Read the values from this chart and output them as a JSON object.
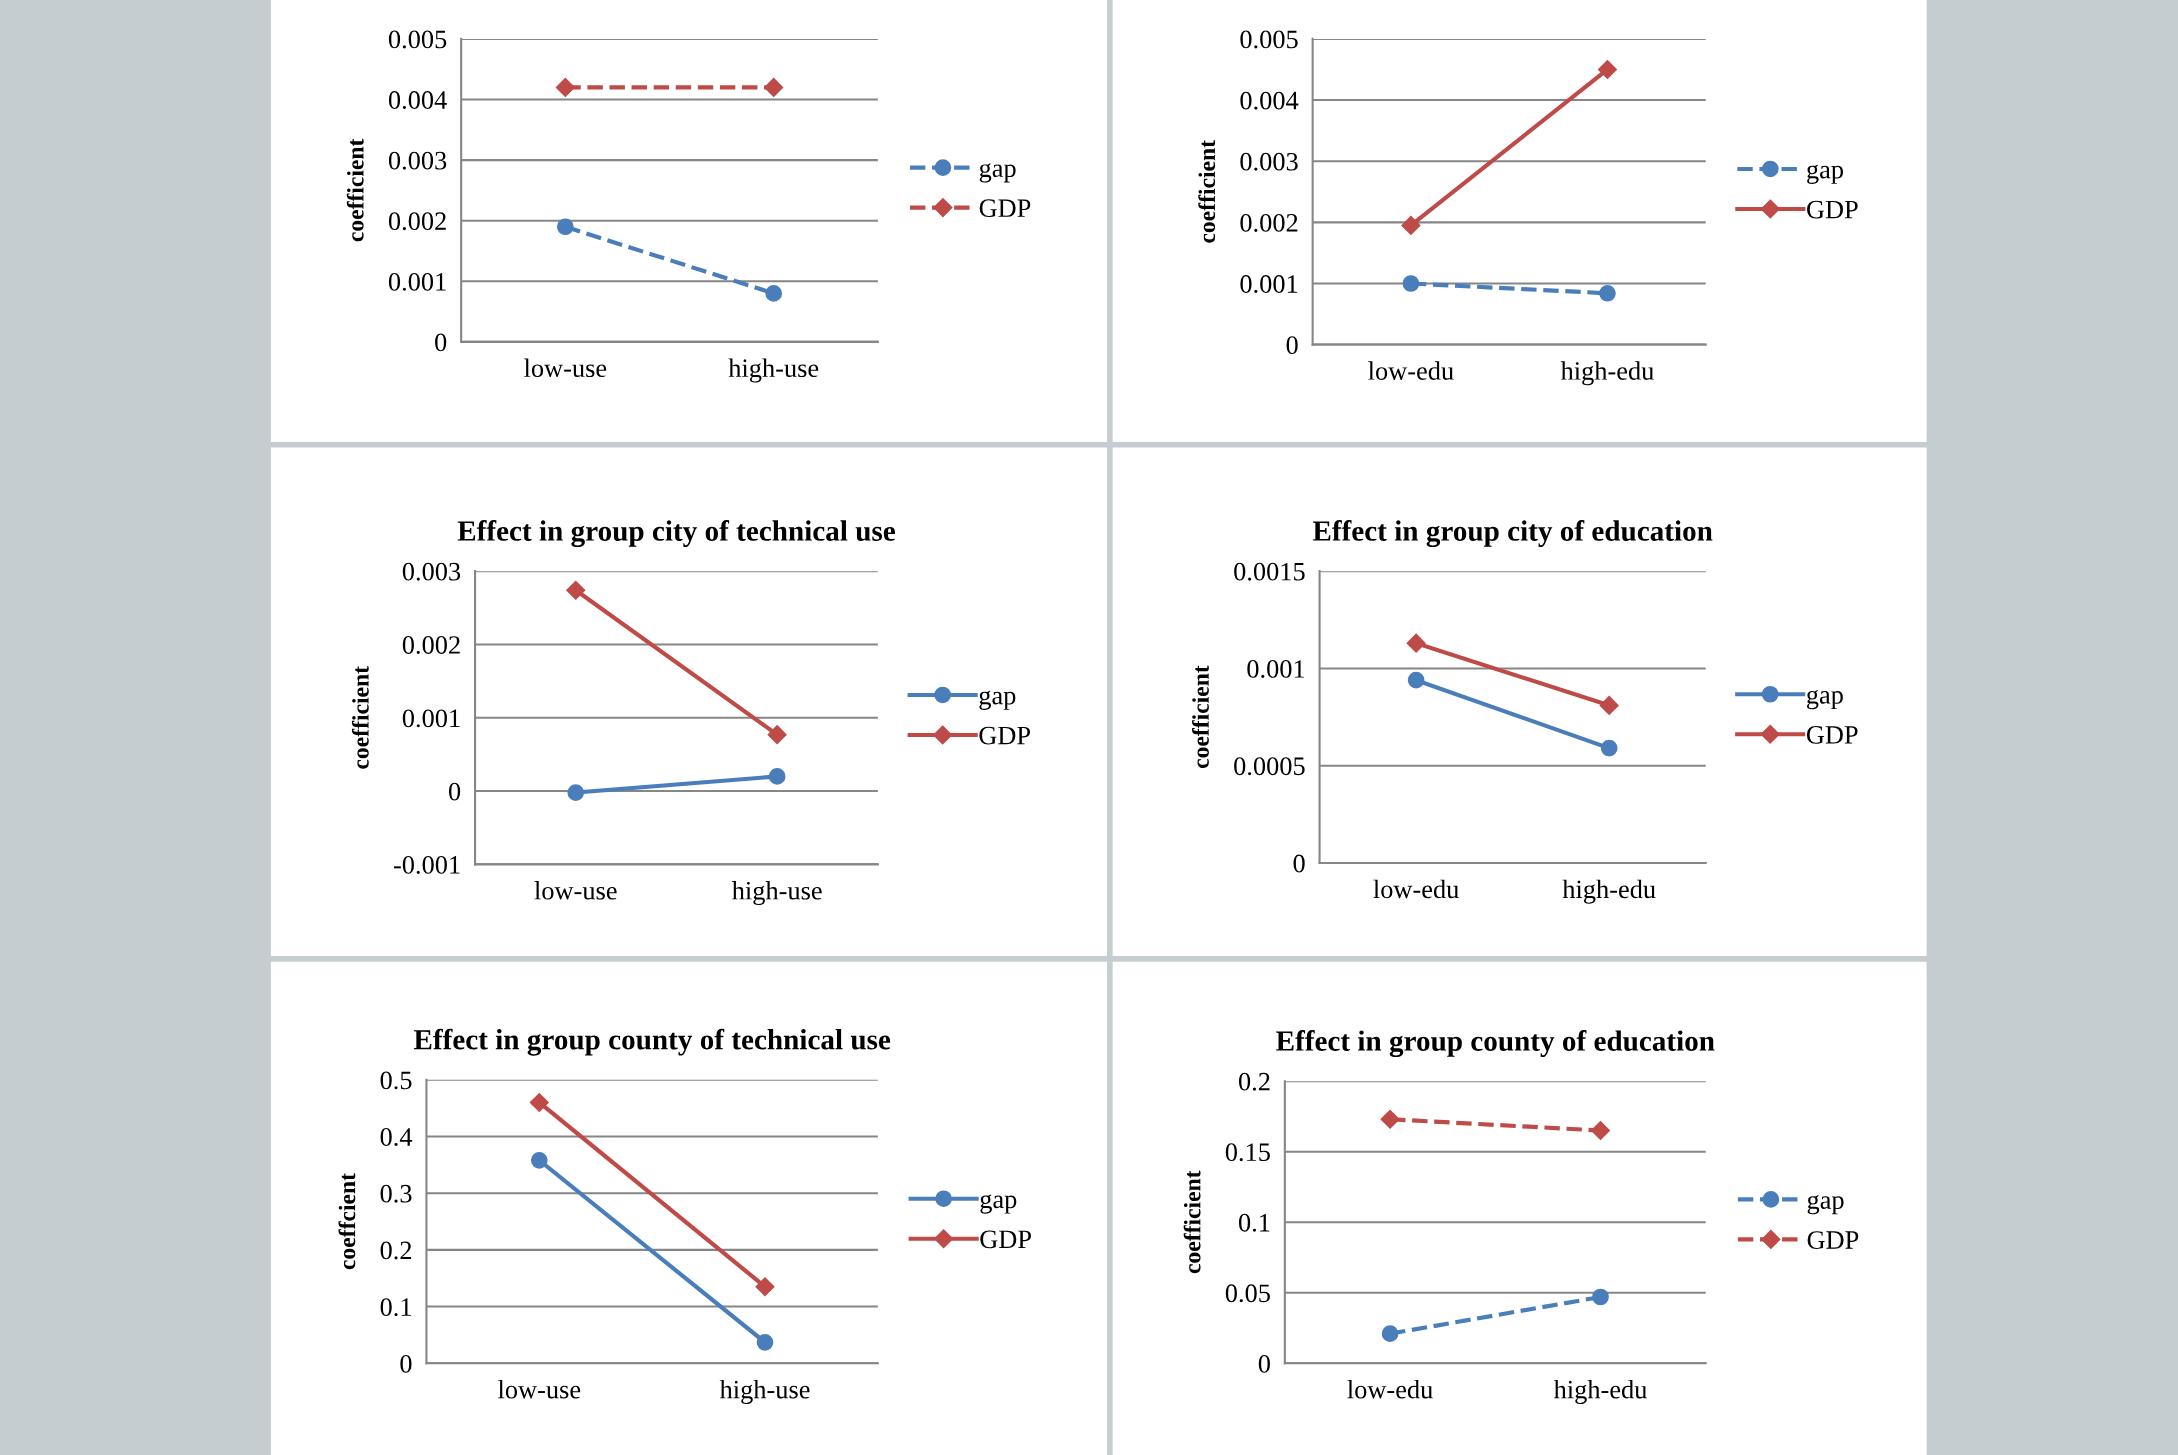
{
  "chart_data": [
    {
      "type": "line",
      "ylabel": "coefficient",
      "categories": [
        "low-use",
        "high-use"
      ],
      "ylim": [
        0,
        0.005
      ],
      "yticks": [
        0,
        0.001,
        0.002,
        0.003,
        0.004,
        0.005
      ],
      "grid": "y",
      "legend": "right",
      "series": [
        {
          "name": "gap",
          "color": "#4a7ebb",
          "values": [
            0.0019,
            0.0008
          ],
          "marker": "circle",
          "line_style": "dashed"
        },
        {
          "name": "GDP",
          "color": "#be4b48",
          "values": [
            0.0042,
            0.0042
          ],
          "marker": "diamond",
          "line_style": "dashed"
        }
      ]
    },
    {
      "type": "line",
      "ylabel": "coefficient",
      "categories": [
        "low-edu",
        "high-edu"
      ],
      "ylim": [
        0,
        0.005
      ],
      "yticks": [
        0,
        0.001,
        0.002,
        0.003,
        0.004,
        0.005
      ],
      "grid": "y",
      "legend": "right",
      "series": [
        {
          "name": "gap",
          "color": "#4a7ebb",
          "values": [
            0.001,
            0.00084
          ],
          "marker": "circle",
          "line_style": "dashed"
        },
        {
          "name": "GDP",
          "color": "#be4b48",
          "values": [
            0.00195,
            0.0045
          ],
          "marker": "diamond",
          "line_style": "solid"
        }
      ]
    },
    {
      "type": "line",
      "title": "Effect in group city of technical use",
      "ylabel": "coefficient",
      "categories": [
        "low-use",
        "high-use"
      ],
      "ylim": [
        -0.001,
        0.003
      ],
      "yticks": [
        -0.001,
        0,
        0.001,
        0.002,
        0.003
      ],
      "grid": "y",
      "legend": "right",
      "series": [
        {
          "name": "gap",
          "color": "#4a7ebb",
          "values": [
            -2e-05,
            0.0002
          ],
          "marker": "circle",
          "line_style": "solid"
        },
        {
          "name": "GDP",
          "color": "#be4b48",
          "values": [
            0.00274,
            0.00077
          ],
          "marker": "diamond",
          "line_style": "solid"
        }
      ]
    },
    {
      "type": "line",
      "title": "Effect in group city of education",
      "ylabel": "coefficient",
      "categories": [
        "low-edu",
        "high-edu"
      ],
      "ylim": [
        0,
        0.0015
      ],
      "yticks": [
        0,
        0.0005,
        0.001,
        0.0015
      ],
      "grid": "y",
      "legend": "right",
      "series": [
        {
          "name": "gap",
          "color": "#4a7ebb",
          "values": [
            0.00094,
            0.00059
          ],
          "marker": "circle",
          "line_style": "solid"
        },
        {
          "name": "GDP",
          "color": "#be4b48",
          "values": [
            0.00113,
            0.00081
          ],
          "marker": "diamond",
          "line_style": "solid"
        }
      ]
    },
    {
      "type": "line",
      "title": "Effect in group county of technical use",
      "ylabel": "coeffcient",
      "categories": [
        "low-use",
        "high-use"
      ],
      "ylim": [
        0,
        0.5
      ],
      "yticks": [
        0,
        0.1,
        0.2,
        0.3,
        0.4,
        0.5
      ],
      "grid": "y",
      "legend": "right",
      "series": [
        {
          "name": "gap",
          "color": "#4a7ebb",
          "values": [
            0.358,
            0.037
          ],
          "marker": "circle",
          "line_style": "solid"
        },
        {
          "name": "GDP",
          "color": "#be4b48",
          "values": [
            0.46,
            0.135
          ],
          "marker": "diamond",
          "line_style": "solid"
        }
      ]
    },
    {
      "type": "line",
      "title": "Effect in group county of education",
      "ylabel": "coefficient",
      "categories": [
        "low-edu",
        "high-edu"
      ],
      "ylim": [
        0,
        0.2
      ],
      "yticks": [
        0,
        0.05,
        0.1,
        0.15,
        0.2
      ],
      "grid": "y",
      "legend": "right",
      "series": [
        {
          "name": "gap",
          "color": "#4a7ebb",
          "values": [
            0.021,
            0.047
          ],
          "marker": "circle",
          "line_style": "dashed"
        },
        {
          "name": "GDP",
          "color": "#be4b48",
          "values": [
            0.173,
            0.165
          ],
          "marker": "diamond",
          "line_style": "dashed"
        }
      ]
    }
  ]
}
